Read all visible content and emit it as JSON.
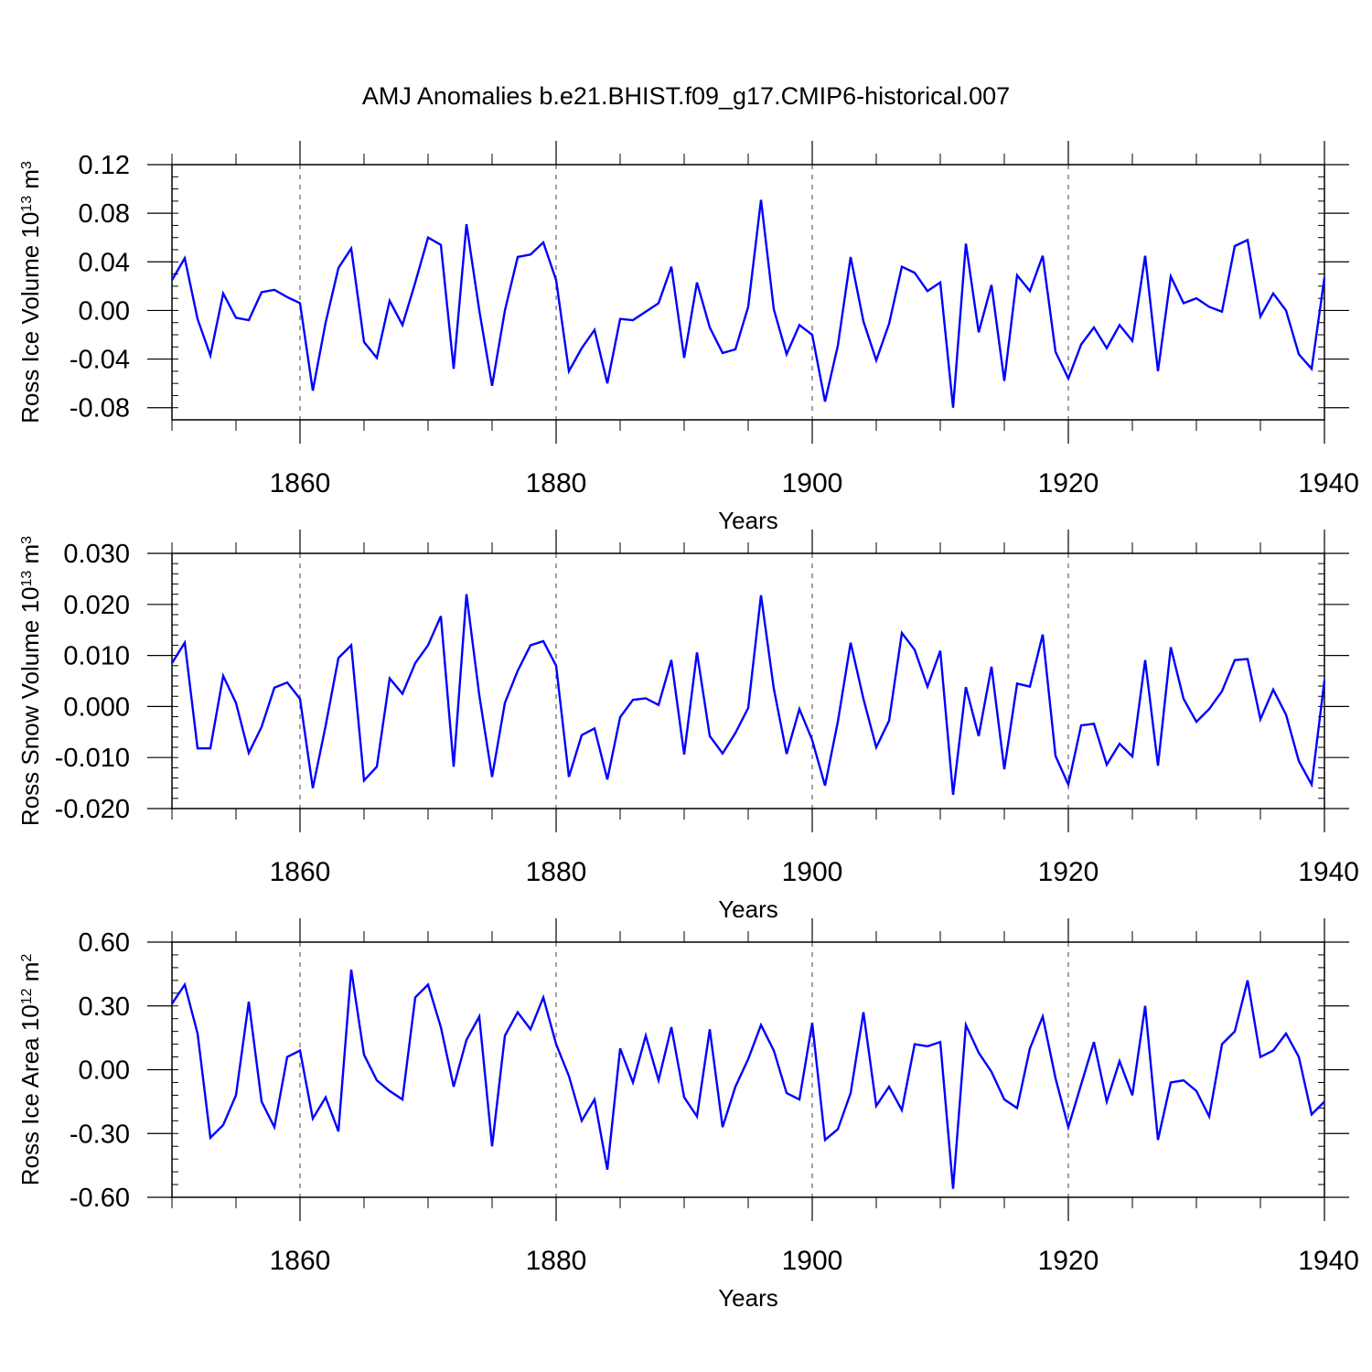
{
  "title": "AMJ Anomalies b.e21.BHIST.f09_g17.CMIP6-historical.007",
  "colors": {
    "series": "#0000ff",
    "axis": "#000000",
    "gridline": "#000000"
  },
  "chart_data": [
    {
      "type": "line",
      "ylabel_main": "Ross Ice Volume 10",
      "ylabel_exp": "13",
      "ylabel_unit": " m",
      "ylabel_unit_exp": "3",
      "xlabel": "Years",
      "xlim": [
        1850,
        1940
      ],
      "ylim": [
        -0.09,
        0.12
      ],
      "yticks": [
        0.12,
        0.08,
        0.04,
        0.0,
        -0.04,
        -0.08
      ],
      "ytick_labels": [
        "0.12",
        "0.08",
        "0.04",
        "0.00",
        "-0.04",
        "-0.08"
      ],
      "yminor_step": 0.01,
      "xticks": [
        1860,
        1880,
        1900,
        1920,
        1940
      ],
      "xtick_labels": [
        "1860",
        "1880",
        "1900",
        "1920",
        "1940"
      ],
      "vgrid": [
        1860,
        1880,
        1900,
        1920
      ],
      "grid": "dashed vertical at major x ticks",
      "series": [
        {
          "name": "Ross Ice Volume",
          "x_start": 1850,
          "values": [
            0.025,
            0.043,
            -0.007,
            -0.037,
            0.014,
            -0.006,
            -0.008,
            0.015,
            0.017,
            0.011,
            0.006,
            -0.066,
            -0.01,
            0.035,
            0.051,
            -0.026,
            -0.039,
            0.008,
            -0.012,
            0.023,
            0.06,
            0.054,
            -0.048,
            0.071,
            0.0,
            -0.062,
            0.0,
            0.044,
            0.046,
            0.056,
            0.025,
            -0.05,
            -0.031,
            -0.016,
            -0.06,
            -0.007,
            -0.008,
            -0.001,
            0.006,
            0.036,
            -0.039,
            0.023,
            -0.014,
            -0.035,
            -0.032,
            0.003,
            0.091,
            0.001,
            -0.036,
            -0.012,
            -0.02,
            -0.075,
            -0.029,
            0.044,
            -0.009,
            -0.041,
            -0.011,
            0.036,
            0.031,
            0.016,
            0.023,
            -0.08,
            0.055,
            -0.018,
            0.021,
            -0.058,
            0.029,
            0.016,
            0.045,
            -0.034,
            -0.056,
            -0.028,
            -0.014,
            -0.031,
            -0.012,
            -0.025,
            0.045,
            -0.05,
            0.028,
            0.006,
            0.01,
            0.003,
            -0.001,
            0.053,
            0.058,
            -0.005,
            0.014,
            0.0,
            -0.036,
            -0.048,
            0.027
          ]
        }
      ]
    },
    {
      "type": "line",
      "ylabel_main": "Ross Snow Volume 10",
      "ylabel_exp": "13",
      "ylabel_unit": " m",
      "ylabel_unit_exp": "3",
      "xlabel": "Years",
      "xlim": [
        1850,
        1940
      ],
      "ylim": [
        -0.02,
        0.03
      ],
      "yticks": [
        0.03,
        0.02,
        0.01,
        0.0,
        -0.01,
        -0.02
      ],
      "ytick_labels": [
        "0.030",
        "0.020",
        "0.010",
        "0.000",
        "-0.010",
        "-0.020"
      ],
      "yminor_step": 0.002,
      "xticks": [
        1860,
        1880,
        1900,
        1920,
        1940
      ],
      "xtick_labels": [
        "1860",
        "1880",
        "1900",
        "1920",
        "1940"
      ],
      "vgrid": [
        1860,
        1880,
        1900,
        1920
      ],
      "grid": "dashed vertical at major x ticks",
      "series": [
        {
          "name": "Ross Snow Volume",
          "x_start": 1850,
          "values": [
            0.0085,
            0.0125,
            -0.0082,
            -0.0082,
            0.006,
            0.0007,
            -0.0091,
            -0.004,
            0.0037,
            0.0047,
            0.0015,
            -0.016,
            -0.0038,
            0.0095,
            0.012,
            -0.0145,
            -0.0118,
            0.0055,
            0.0025,
            0.0085,
            0.012,
            0.0177,
            -0.0118,
            0.022,
            0.0022,
            -0.0138,
            0.0007,
            0.007,
            0.012,
            0.0128,
            0.008,
            -0.0138,
            -0.0056,
            -0.0043,
            -0.0143,
            -0.0021,
            0.0013,
            0.0016,
            0.0003,
            0.0091,
            -0.0094,
            0.0106,
            -0.0058,
            -0.0092,
            -0.0052,
            -0.0003,
            0.0218,
            0.0035,
            -0.0093,
            -0.0005,
            -0.0066,
            -0.0155,
            -0.003,
            0.0125,
            0.0015,
            -0.008,
            -0.0028,
            0.0144,
            0.0111,
            0.0039,
            0.0109,
            -0.0173,
            0.0038,
            -0.0058,
            0.0078,
            -0.0123,
            0.0045,
            0.0039,
            0.0141,
            -0.0097,
            -0.0153,
            -0.0037,
            -0.0034,
            -0.0114,
            -0.0073,
            -0.0098,
            0.0091,
            -0.0116,
            0.0116,
            0.0015,
            -0.003,
            -0.0005,
            0.003,
            0.0091,
            0.0093,
            -0.0025,
            0.0033,
            -0.0016,
            -0.0107,
            -0.0153,
            0.0051
          ]
        }
      ]
    },
    {
      "type": "line",
      "ylabel_main": "Ross Ice Area 10",
      "ylabel_exp": "12",
      "ylabel_unit": " m",
      "ylabel_unit_exp": "2",
      "xlabel": "Years",
      "xlim": [
        1850,
        1940
      ],
      "ylim": [
        -0.6,
        0.6
      ],
      "yticks": [
        0.6,
        0.3,
        0.0,
        -0.3,
        -0.6
      ],
      "ytick_labels": [
        "0.60",
        "0.30",
        "0.00",
        "-0.30",
        "-0.60"
      ],
      "yminor_step": 0.06,
      "xticks": [
        1860,
        1880,
        1900,
        1920,
        1940
      ],
      "xtick_labels": [
        "1860",
        "1880",
        "1900",
        "1920",
        "1940"
      ],
      "vgrid": [
        1860,
        1880,
        1900,
        1920
      ],
      "grid": "dashed vertical at major x ticks",
      "series": [
        {
          "name": "Ross Ice Area",
          "x_start": 1850,
          "values": [
            0.31,
            0.4,
            0.17,
            -0.32,
            -0.26,
            -0.12,
            0.32,
            -0.15,
            -0.27,
            0.06,
            0.09,
            -0.23,
            -0.13,
            -0.29,
            0.47,
            0.07,
            -0.05,
            -0.1,
            -0.14,
            0.34,
            0.4,
            0.2,
            -0.08,
            0.14,
            0.25,
            -0.36,
            0.16,
            0.27,
            0.19,
            0.34,
            0.12,
            -0.03,
            -0.24,
            -0.14,
            -0.47,
            0.1,
            -0.06,
            0.16,
            -0.05,
            0.2,
            -0.13,
            -0.22,
            0.19,
            -0.27,
            -0.08,
            0.05,
            0.21,
            0.09,
            -0.11,
            -0.14,
            0.22,
            -0.33,
            -0.28,
            -0.11,
            0.27,
            -0.17,
            -0.08,
            -0.19,
            0.12,
            0.11,
            0.13,
            -0.56,
            0.21,
            0.08,
            -0.01,
            -0.14,
            -0.18,
            0.1,
            0.25,
            -0.04,
            -0.27,
            -0.07,
            0.13,
            -0.15,
            0.04,
            -0.12,
            0.3,
            -0.33,
            -0.06,
            -0.05,
            -0.1,
            -0.22,
            0.12,
            0.18,
            0.42,
            0.06,
            0.09,
            0.17,
            0.06,
            -0.21,
            -0.15
          ]
        }
      ]
    }
  ]
}
